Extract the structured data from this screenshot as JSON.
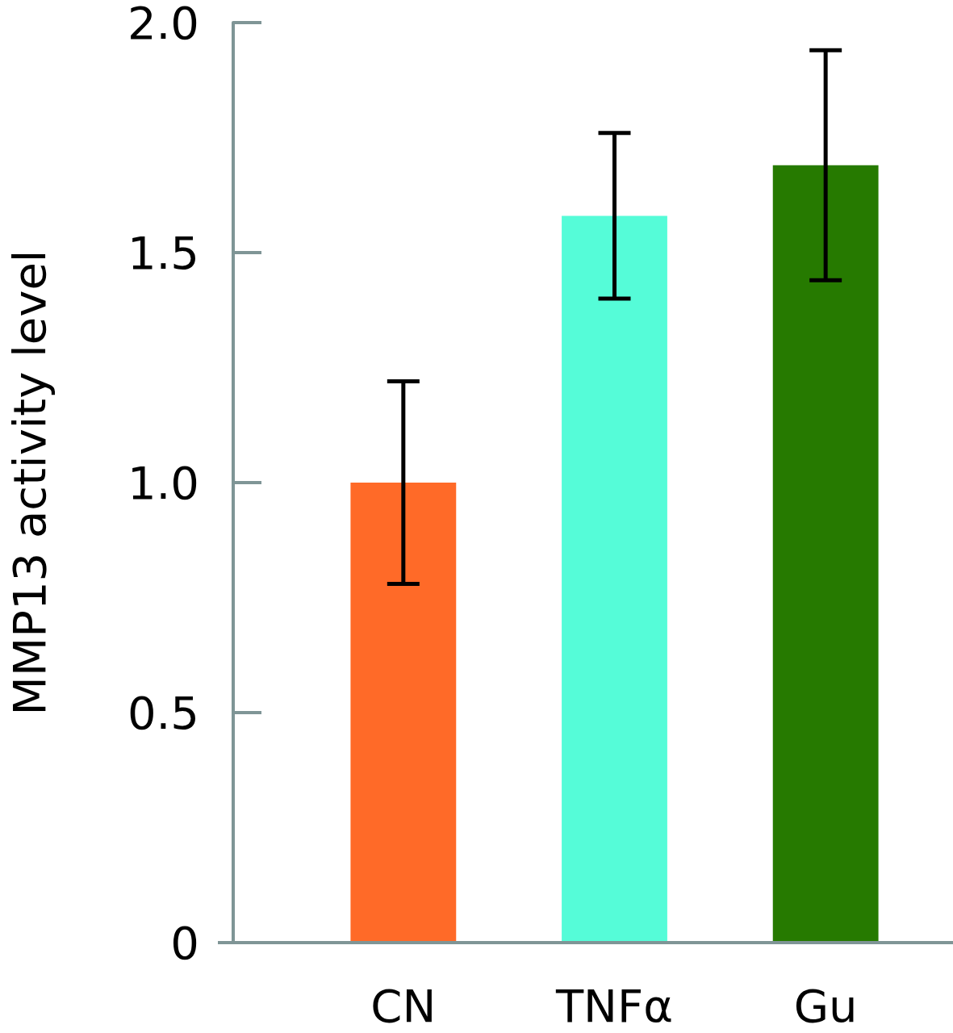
{
  "chart_data": {
    "type": "bar",
    "y_label": "MMP13 activity level",
    "categories": [
      "CN",
      "TNFα",
      "Gu"
    ],
    "values": [
      1.0,
      1.58,
      1.69
    ],
    "errors": [
      0.22,
      0.18,
      0.25
    ],
    "colors": [
      "#ff6a28",
      "#55fcd8",
      "#267a00"
    ],
    "ylim": [
      0,
      2
    ],
    "yticks": [
      0,
      0.5,
      {
        "value": 1,
        "label": "1.0"
      },
      1.5,
      {
        "value": 2,
        "label": "2.0"
      }
    ],
    "grid": false
  }
}
